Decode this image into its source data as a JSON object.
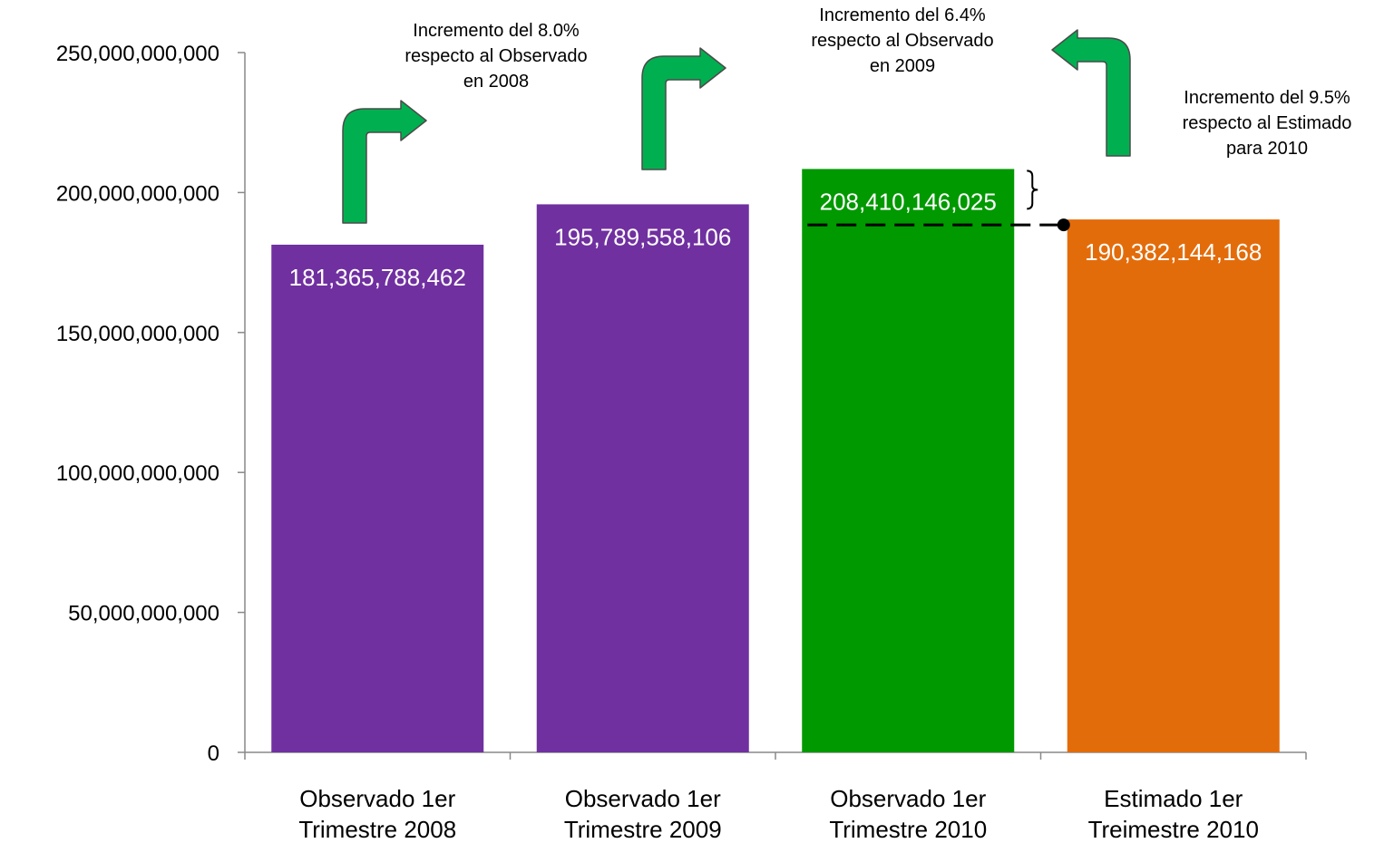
{
  "chart_data": {
    "type": "bar",
    "categories": [
      [
        "Observado 1er",
        "Trimestre 2008"
      ],
      [
        "Observado 1er",
        "Trimestre 2009"
      ],
      [
        "Observado 1er",
        "Trimestre 2010"
      ],
      [
        "Estimado 1er",
        "Treimestre 2010"
      ]
    ],
    "values": [
      181365788462,
      195789558106,
      208410146025,
      190382144168
    ],
    "value_labels": [
      "181,365,788,462",
      "195,789,558,106",
      "208,410,146,025",
      "190,382,144,168"
    ],
    "bar_colors": [
      "#7030a0",
      "#7030a0",
      "#009900",
      "#e36c0a"
    ],
    "ylim": [
      0,
      250000000000
    ],
    "yticks": [
      0,
      50000000000,
      100000000000,
      150000000000,
      200000000000,
      250000000000
    ],
    "ytick_labels": [
      "0",
      "50,000,000,000",
      "100,000,000,000",
      "150,000,000,000",
      "200,000,000,000",
      "250,000,000,000"
    ],
    "grid": false,
    "annotations": [
      {
        "lines": [
          "Incremento del 8.0%",
          "respecto al Observado",
          "en 2008"
        ]
      },
      {
        "lines": [
          "Incremento del 6.4%",
          "respecto al Observado",
          "en 2009"
        ]
      },
      {
        "lines": [
          "Incremento del 9.5%",
          "respecto al Estimado",
          "para 2010"
        ]
      }
    ],
    "arrow_color": "#00b050"
  }
}
